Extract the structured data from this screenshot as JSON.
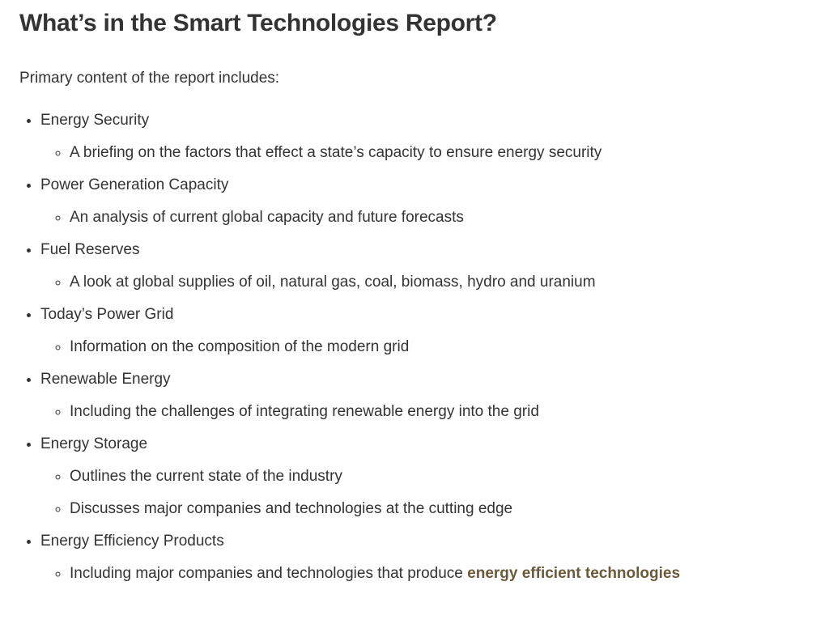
{
  "page": {
    "title": "What’s in the Smart Technologies Report?",
    "intro": "Primary content of the report includes:"
  },
  "report_sections": [
    {
      "label": "Energy Security",
      "details": [
        "A briefing on the factors that effect a state’s capacity to ensure energy security"
      ]
    },
    {
      "label": "Power Generation Capacity",
      "details": [
        "An analysis of current global capacity and future forecasts"
      ]
    },
    {
      "label": "Fuel Reserves",
      "details": [
        "A look at global supplies of oil, natural gas, coal, biomass, hydro and uranium"
      ]
    },
    {
      "label": "Today’s Power Grid",
      "details": [
        "Information on the composition of the modern grid"
      ]
    },
    {
      "label": "Renewable Energy",
      "details": [
        "Including the challenges of integrating renewable energy into the grid"
      ]
    },
    {
      "label": "Energy Storage",
      "details": [
        "Outlines the current state of the industry",
        "Discusses major companies and technologies at the cutting edge"
      ]
    },
    {
      "label": "Energy Efficiency Products",
      "details_rich": {
        "prefix": "Including major companies and technologies that produce ",
        "link_text": "energy efficient technologies"
      }
    }
  ],
  "colors": {
    "text": "#333333",
    "link": "#6b5a39",
    "background": "#ffffff"
  }
}
